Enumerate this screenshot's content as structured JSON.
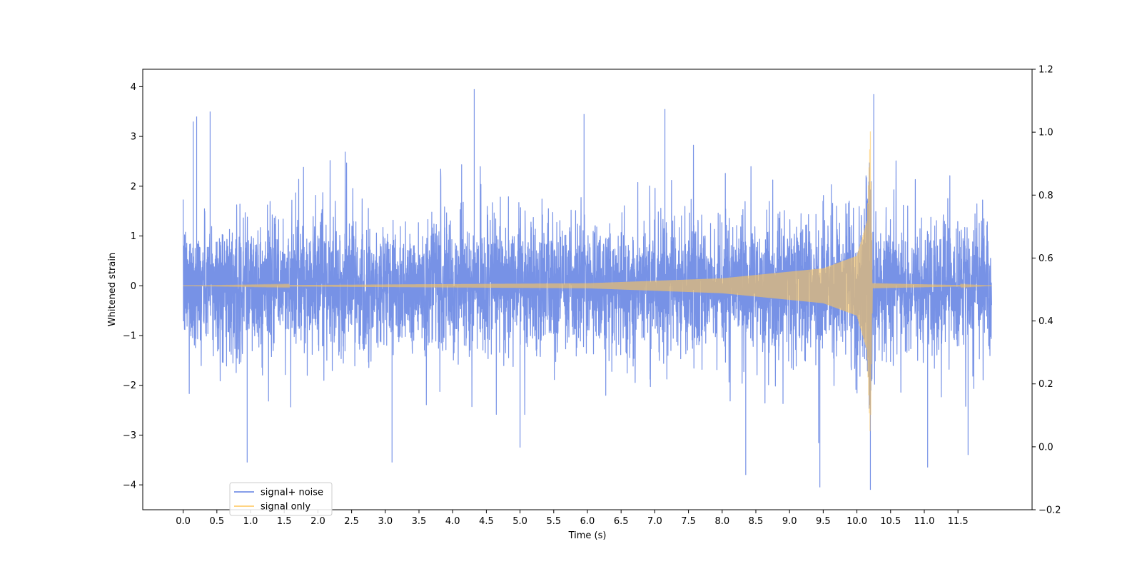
{
  "chart_data": {
    "type": "line",
    "title": "",
    "xlabel": "Time (s)",
    "ylabel": "Whitened strain",
    "xlim": [
      -0.6,
      12.6
    ],
    "ylim": [
      -4.5,
      4.35
    ],
    "y2lim": [
      -0.2,
      1.2
    ],
    "xticks": [
      "0.0",
      "0.5",
      "1.0",
      "1.5",
      "2.0",
      "2.5",
      "3.0",
      "3.5",
      "4.0",
      "4.5",
      "5.0",
      "5.5",
      "6.0",
      "6.5",
      "7.0",
      "7.5",
      "8.0",
      "8.5",
      "9.0",
      "9.5",
      "10.0",
      "10.5",
      "11.0",
      "11.5"
    ],
    "yticks": [
      "4",
      "3",
      "2",
      "1",
      "0",
      "−1",
      "−2",
      "−3",
      "−4"
    ],
    "y2ticks": [
      "1.2",
      "1.0",
      "0.8",
      "0.6",
      "0.4",
      "0.2",
      "0.0",
      "−0.2"
    ],
    "grid": false,
    "legend_position": "lower-left",
    "series": [
      {
        "name": "signal+ noise",
        "color": "#5f7fe2",
        "x_range": [
          0.0,
          12.0
        ],
        "approx_std": 0.8,
        "typical_envelope": [
          -2.2,
          2.3
        ],
        "notable_peaks": [
          {
            "x": 0.15,
            "y": 3.3
          },
          {
            "x": 0.2,
            "y": 3.4
          },
          {
            "x": 0.4,
            "y": 3.5
          },
          {
            "x": 0.95,
            "y": -3.55
          },
          {
            "x": 3.1,
            "y": -3.55
          },
          {
            "x": 4.32,
            "y": 3.95
          },
          {
            "x": 5.0,
            "y": -3.25
          },
          {
            "x": 5.95,
            "y": 3.45
          },
          {
            "x": 7.15,
            "y": 3.55
          },
          {
            "x": 8.35,
            "y": -3.8
          },
          {
            "x": 9.45,
            "y": -4.05
          },
          {
            "x": 10.2,
            "y": -4.1
          },
          {
            "x": 10.25,
            "y": 3.85
          },
          {
            "x": 11.05,
            "y": -3.65
          },
          {
            "x": 11.65,
            "y": -3.4
          }
        ]
      },
      {
        "name": "signal only",
        "color": "#ffc658",
        "x_range": [
          0.0,
          12.0
        ],
        "description_points": [
          {
            "x": 0.0,
            "amplitude": 0.0
          },
          {
            "x": 6.0,
            "amplitude": 0.05
          },
          {
            "x": 8.0,
            "amplitude": 0.15
          },
          {
            "x": 9.5,
            "amplitude": 0.35
          },
          {
            "x": 10.0,
            "amplitude": 0.6
          },
          {
            "x": 10.15,
            "amplitude": 1.3
          },
          {
            "x": 10.2,
            "amplitude": 3.1
          },
          {
            "x": 10.23,
            "amplitude": 0.05
          },
          {
            "x": 12.0,
            "amplitude": 0.0
          }
        ]
      }
    ]
  }
}
